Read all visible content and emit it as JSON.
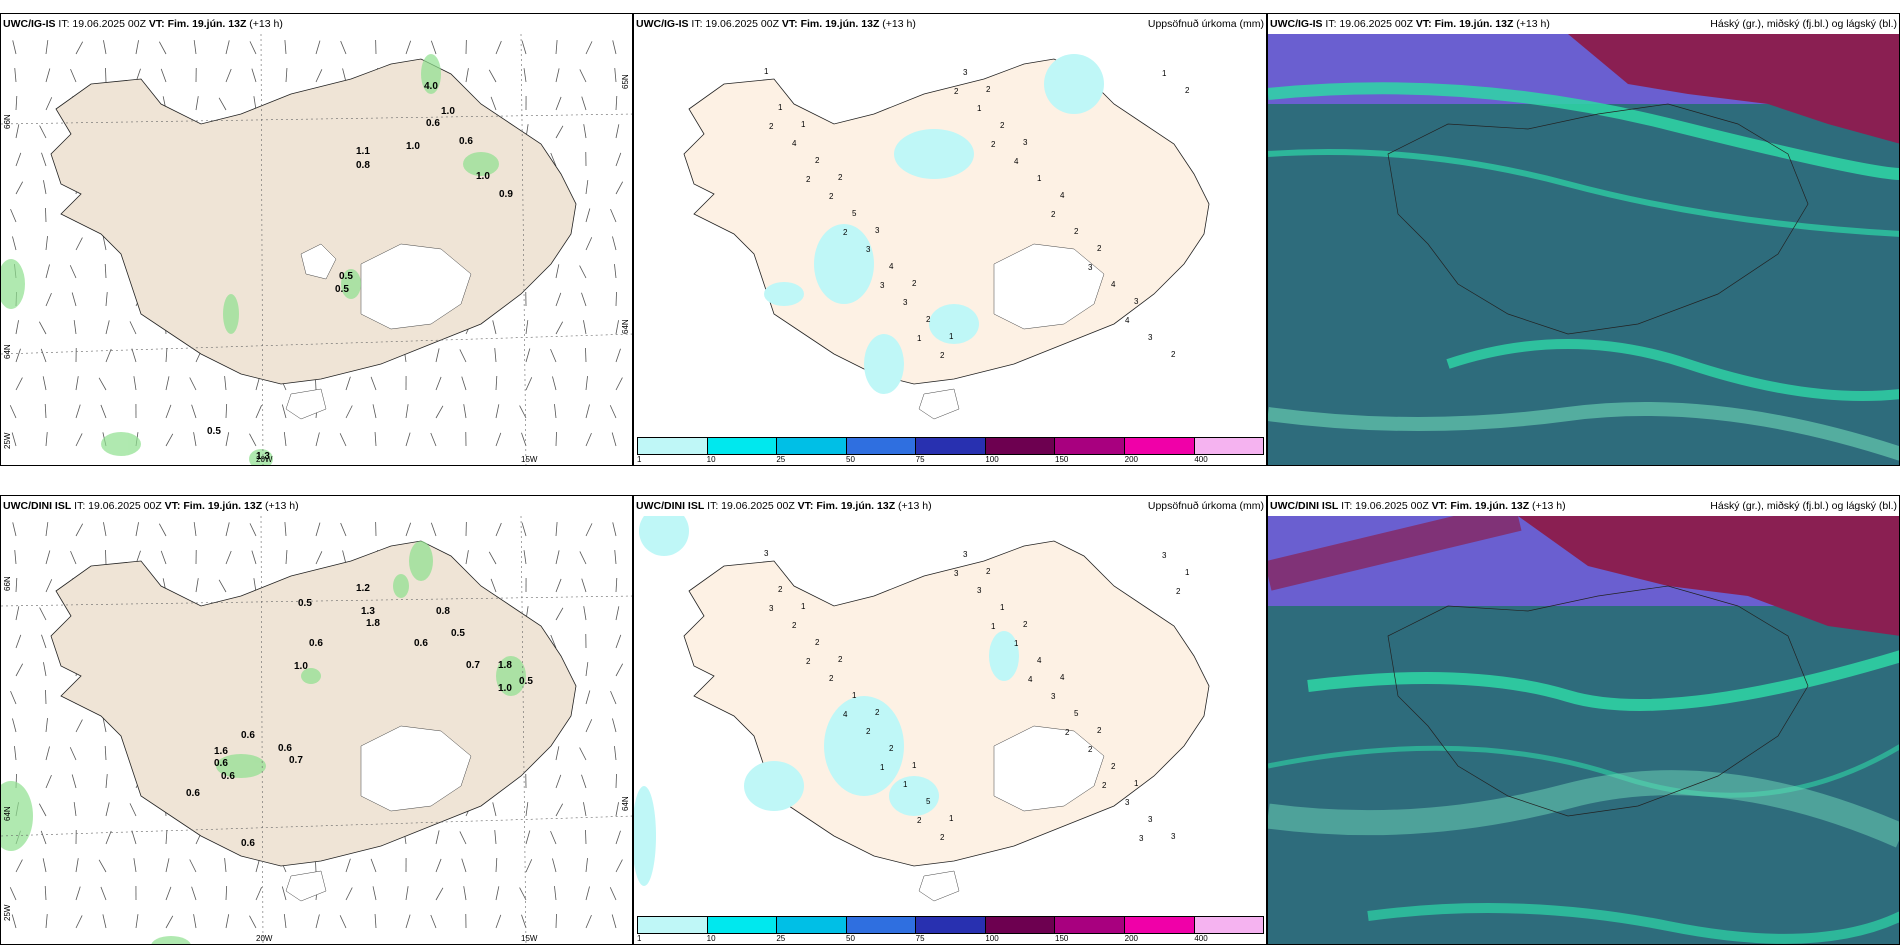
{
  "rows": [
    {
      "model": "UWC/IG-IS",
      "it": "IT: 19.06.2025 00Z",
      "vt": "VT: Fim. 19.jún. 13Z",
      "lead": "(+13 h)",
      "wind_values": [
        "1.1",
        "0.8",
        "1.0",
        "0.6",
        "1.0",
        "0.6",
        "1.0",
        "0.9",
        "0.5",
        "0.5",
        "4.0",
        "0.5",
        "1.3"
      ],
      "precip_values": [
        "1",
        "1",
        "2",
        "3",
        "2",
        "1",
        "2",
        "3",
        "4",
        "2",
        "3",
        "2",
        "1",
        "2",
        "5",
        "4",
        "2",
        "3",
        "2",
        "1",
        "2",
        "4",
        "3",
        "2",
        "4",
        "2",
        "3",
        "3",
        "2",
        "1",
        "4",
        "2",
        "3",
        "4",
        "1",
        "2",
        "2",
        "2",
        "3",
        "1",
        "2",
        "2"
      ]
    },
    {
      "model": "UWC/DINI ISL",
      "it": "IT: 19.06.2025 00Z",
      "vt": "VT: Fim. 19.jún. 13Z",
      "lead": "(+13 h)",
      "wind_values": [
        "0.5",
        "1.2",
        "1.3",
        "1.8",
        "0.8",
        "0.5",
        "0.6",
        "0.6",
        "1.0",
        "0.7",
        "1.8",
        "1.0",
        "0.5",
        "0.6",
        "0.6",
        "0.7",
        "0.6",
        "0.6",
        "0.6",
        "0.6",
        "1.6"
      ],
      "precip_values": [
        "3",
        "1",
        "2",
        "2",
        "1",
        "1",
        "2",
        "2",
        "4",
        "2",
        "1",
        "3",
        "2",
        "2",
        "1",
        "2",
        "5",
        "3",
        "1",
        "4",
        "5",
        "2",
        "3",
        "1",
        "2",
        "2",
        "2",
        "1",
        "2",
        "3",
        "1",
        "3",
        "2",
        "3",
        "3",
        "3",
        "2",
        "4",
        "1",
        "2",
        "3",
        "1",
        "4",
        "2",
        "2",
        "3",
        "2"
      ]
    }
  ],
  "precip_title": "Uppsöfnuð úrkoma (mm)",
  "cloud_title": "Háský (gr.), miðský (fj.bl.) og lágský (bl.)",
  "colorbar": {
    "ticks": [
      "1",
      "10",
      "25",
      "50",
      "75",
      "100",
      "150",
      "200",
      "400"
    ],
    "colors": [
      "#bff7f7",
      "#00e8ee",
      "#00bfe6",
      "#2f6fe0",
      "#2830b0",
      "#6d0050",
      "#a8007f",
      "#f000a8",
      "#f5b3f0"
    ]
  },
  "grid_labels": {
    "lat66": "66N",
    "lat64": "64N",
    "lon25": "25W",
    "lon20": "20W",
    "lon15": "15W",
    "lat65": "65N"
  },
  "colors": {
    "land": "#efe4d6",
    "land_precip": "#fdf1e4",
    "precip_light": "#bff7f7",
    "wind_green": "#8ee08e",
    "cloud_low": "#2e6c7c",
    "cloud_mid": "#2ed7a6",
    "cloud_high": "#8a1f52",
    "cloud_purple": "#6a5fd0"
  }
}
